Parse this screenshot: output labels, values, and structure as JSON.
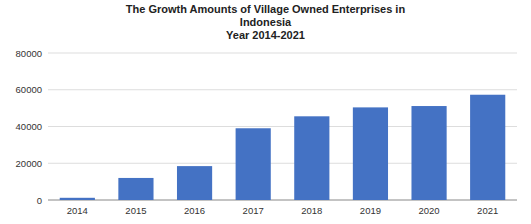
{
  "chart_data": {
    "type": "bar",
    "title": "The Growth Amounts of Village Owned Enterprises in\nIndonesia\nYear 2014-2021",
    "categories": [
      "2014",
      "2015",
      "2016",
      "2017",
      "2018",
      "2019",
      "2020",
      "2021"
    ],
    "values": [
      1200,
      12000,
      18446,
      39039,
      45549,
      50402,
      51135,
      57288
    ],
    "color": "#4472C4",
    "ylim": [
      0,
      80000
    ],
    "yticks": [
      0,
      20000,
      40000,
      60000,
      80000
    ],
    "grid": true
  }
}
